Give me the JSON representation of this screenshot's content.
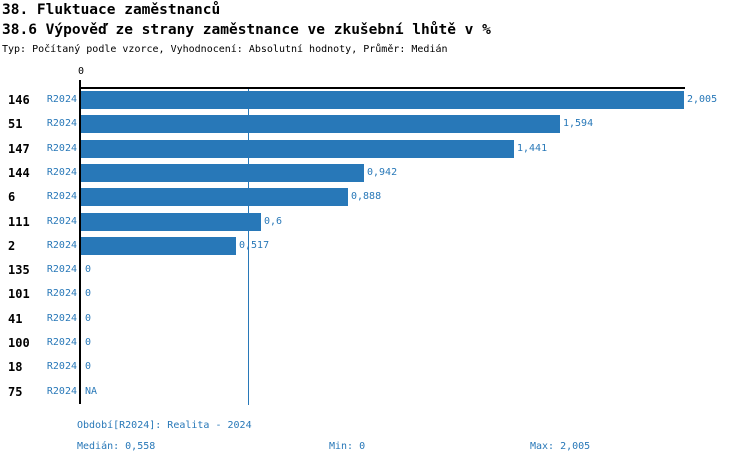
{
  "header": {
    "title": "38. Fluktuace zaměstnanců",
    "subtitle": "38.6 Výpověď ze strany zaměstnance ve zkušební lhůtě v %",
    "meta": "Typ: Počítaný podle vzorce, Vyhodnocení: Absolutní hodnoty, Průměr: Medián"
  },
  "colors": {
    "bar": "#2878b8",
    "text_blue": "#2878b8",
    "axis": "#000000",
    "median_line": "#2878b8",
    "background": "#ffffff"
  },
  "chart_data": {
    "type": "bar",
    "orientation": "horizontal",
    "title": "38.6 Výpověď ze strany zaměstnance ve zkušební lhůtě v %",
    "series_label": "R2024",
    "categories": [
      "146",
      "51",
      "147",
      "144",
      "6",
      "111",
      "2",
      "135",
      "101",
      "41",
      "100",
      "18",
      "75"
    ],
    "values": [
      2.005,
      1.594,
      1.441,
      0.942,
      0.888,
      0.6,
      0.517,
      0,
      0,
      0,
      0,
      0,
      null
    ],
    "value_labels": [
      "2,005",
      "1,594",
      "1,441",
      "0,942",
      "0,888",
      "0,6",
      "0,517",
      "0",
      "0",
      "0",
      "0",
      "0",
      "NA"
    ],
    "xlim": [
      0,
      2.005
    ],
    "x_tick_label": "0",
    "grid": false,
    "legend_position": "none",
    "median": 0.558,
    "median_label": "0,558"
  },
  "footer": {
    "period": "Období[R2024]: Realita - 2024",
    "median": "Medián: 0,558",
    "min": "Min: 0",
    "max": "Max: 2,005"
  }
}
